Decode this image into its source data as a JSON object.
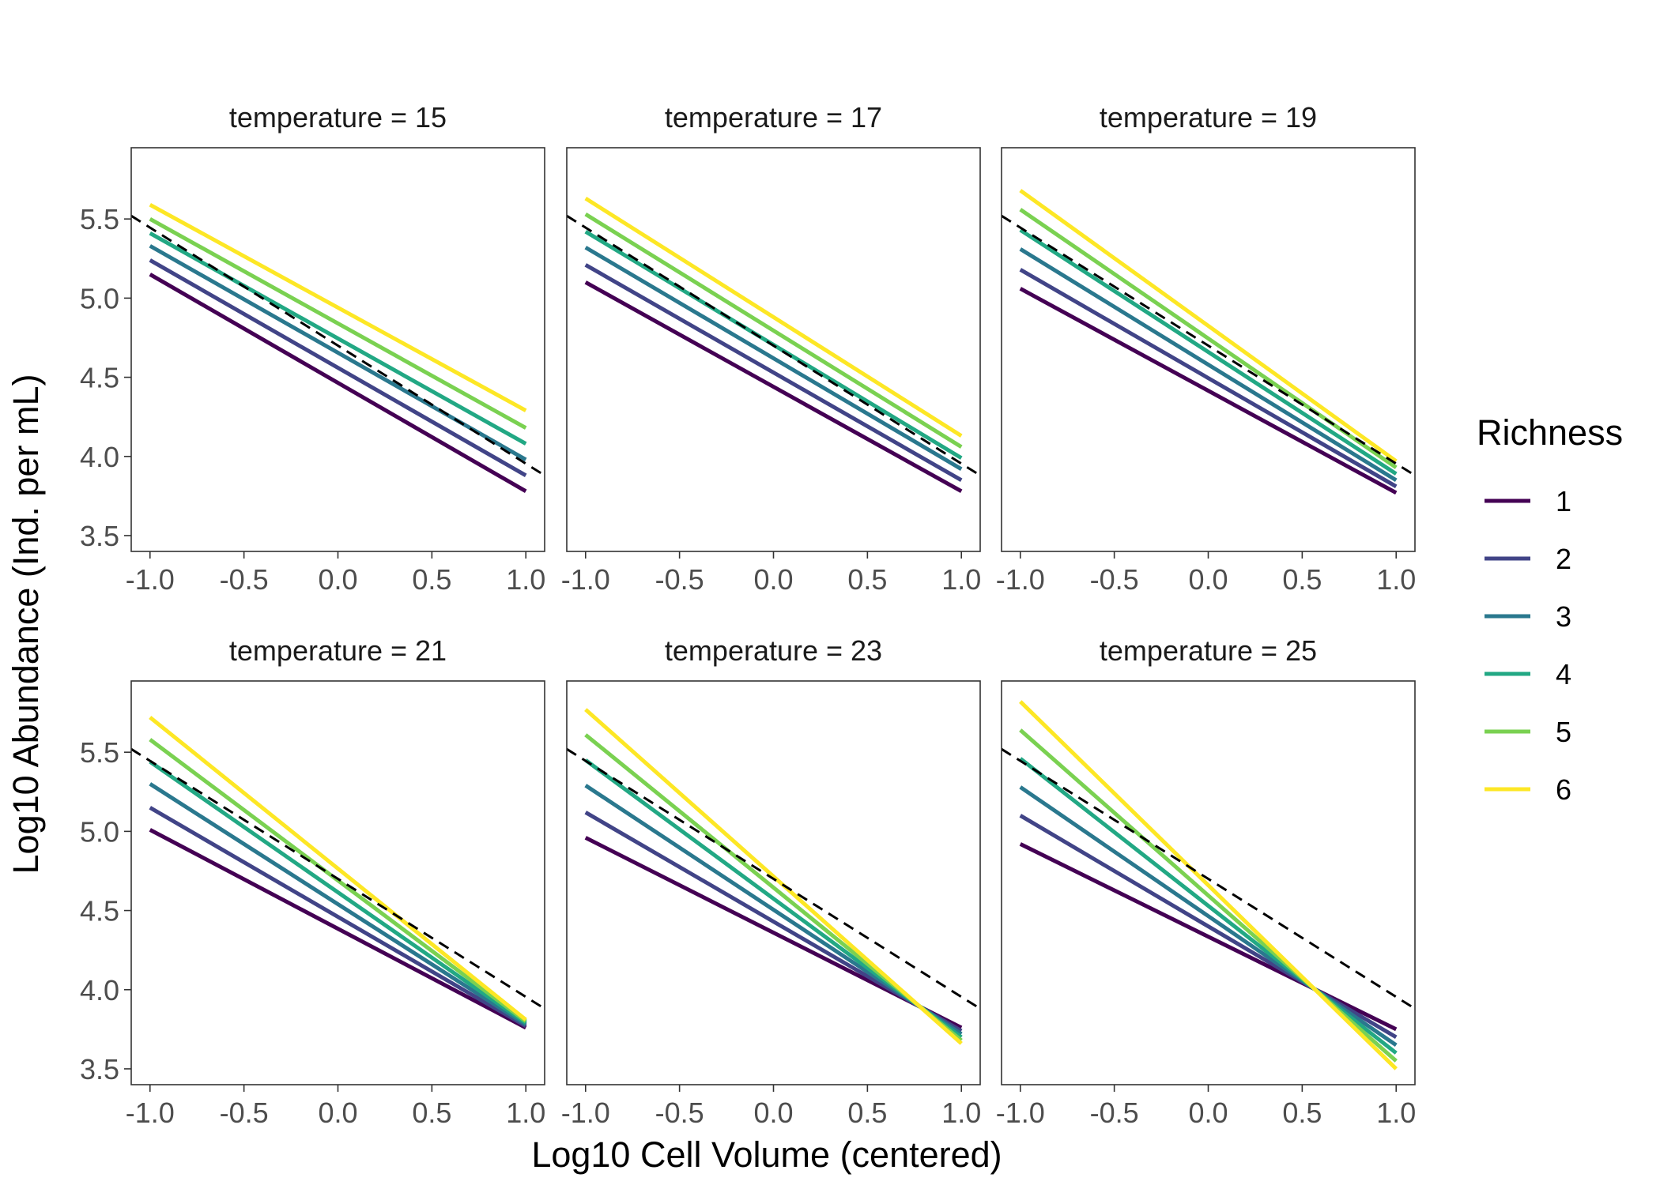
{
  "chart_data": {
    "type": "line",
    "xlabel": "Log10 Cell Volume (centered)",
    "ylabel": "Log10 Abundance (Ind. per mL)",
    "xlim": [
      -1.1,
      1.1
    ],
    "ylim": [
      3.4,
      5.95
    ],
    "x_ticks": [
      -1.0,
      -0.5,
      0.0,
      0.5,
      1.0
    ],
    "x_tick_labels": [
      "-1.0",
      "-0.5",
      "0.0",
      "0.5",
      "1.0"
    ],
    "y_ticks": [
      3.5,
      4.0,
      4.5,
      5.0,
      5.5
    ],
    "y_tick_labels": [
      "3.5",
      "4.0",
      "4.5",
      "5.0",
      "5.5"
    ],
    "grid": false,
    "legend": {
      "title": "Richness",
      "position": "right",
      "entries": [
        {
          "label": "1",
          "color": "#440154"
        },
        {
          "label": "2",
          "color": "#414487"
        },
        {
          "label": "3",
          "color": "#2A788E"
        },
        {
          "label": "4",
          "color": "#22A884"
        },
        {
          "label": "5",
          "color": "#7AD151"
        },
        {
          "label": "6",
          "color": "#FDE725"
        }
      ]
    },
    "reference_line": {
      "style": "dashed",
      "color": "#000000",
      "x": [
        -1.1,
        1.1
      ],
      "y": [
        5.52,
        3.88
      ]
    },
    "panels": [
      {
        "title": "temperature = 15",
        "series": [
          {
            "name": "1",
            "x": [
              -1,
              1
            ],
            "y": [
              5.15,
              3.78
            ]
          },
          {
            "name": "2",
            "x": [
              -1,
              1
            ],
            "y": [
              5.24,
              3.88
            ]
          },
          {
            "name": "3",
            "x": [
              -1,
              1
            ],
            "y": [
              5.33,
              3.98
            ]
          },
          {
            "name": "4",
            "x": [
              -1,
              1
            ],
            "y": [
              5.41,
              4.08
            ]
          },
          {
            "name": "5",
            "x": [
              -1,
              1
            ],
            "y": [
              5.5,
              4.18
            ]
          },
          {
            "name": "6",
            "x": [
              -1,
              1
            ],
            "y": [
              5.59,
              4.29
            ]
          }
        ]
      },
      {
        "title": "temperature = 17",
        "series": [
          {
            "name": "1",
            "x": [
              -1,
              1
            ],
            "y": [
              5.1,
              3.78
            ]
          },
          {
            "name": "2",
            "x": [
              -1,
              1
            ],
            "y": [
              5.21,
              3.85
            ]
          },
          {
            "name": "3",
            "x": [
              -1,
              1
            ],
            "y": [
              5.32,
              3.92
            ]
          },
          {
            "name": "4",
            "x": [
              -1,
              1
            ],
            "y": [
              5.42,
              3.99
            ]
          },
          {
            "name": "5",
            "x": [
              -1,
              1
            ],
            "y": [
              5.53,
              4.06
            ]
          },
          {
            "name": "6",
            "x": [
              -1,
              1
            ],
            "y": [
              5.63,
              4.13
            ]
          }
        ]
      },
      {
        "title": "temperature = 19",
        "series": [
          {
            "name": "1",
            "x": [
              -1,
              1
            ],
            "y": [
              5.06,
              3.77
            ]
          },
          {
            "name": "2",
            "x": [
              -1,
              1
            ],
            "y": [
              5.18,
              3.81
            ]
          },
          {
            "name": "3",
            "x": [
              -1,
              1
            ],
            "y": [
              5.31,
              3.85
            ]
          },
          {
            "name": "4",
            "x": [
              -1,
              1
            ],
            "y": [
              5.43,
              3.89
            ]
          },
          {
            "name": "5",
            "x": [
              -1,
              1
            ],
            "y": [
              5.56,
              3.93
            ]
          },
          {
            "name": "6",
            "x": [
              -1,
              1
            ],
            "y": [
              5.68,
              3.97
            ]
          }
        ]
      },
      {
        "title": "temperature = 21",
        "series": [
          {
            "name": "1",
            "x": [
              -1,
              1
            ],
            "y": [
              5.01,
              3.76
            ]
          },
          {
            "name": "2",
            "x": [
              -1,
              1
            ],
            "y": [
              5.15,
              3.77
            ]
          },
          {
            "name": "3",
            "x": [
              -1,
              1
            ],
            "y": [
              5.3,
              3.78
            ]
          },
          {
            "name": "4",
            "x": [
              -1,
              1
            ],
            "y": [
              5.44,
              3.79
            ]
          },
          {
            "name": "5",
            "x": [
              -1,
              1
            ],
            "y": [
              5.58,
              3.8
            ]
          },
          {
            "name": "6",
            "x": [
              -1,
              1
            ],
            "y": [
              5.72,
              3.81
            ]
          }
        ]
      },
      {
        "title": "temperature = 23",
        "series": [
          {
            "name": "1",
            "x": [
              -1,
              1
            ],
            "y": [
              4.96,
              3.76
            ]
          },
          {
            "name": "2",
            "x": [
              -1,
              1
            ],
            "y": [
              5.12,
              3.74
            ]
          },
          {
            "name": "3",
            "x": [
              -1,
              1
            ],
            "y": [
              5.29,
              3.72
            ]
          },
          {
            "name": "4",
            "x": [
              -1,
              1
            ],
            "y": [
              5.45,
              3.7
            ]
          },
          {
            "name": "5",
            "x": [
              -1,
              1
            ],
            "y": [
              5.61,
              3.68
            ]
          },
          {
            "name": "6",
            "x": [
              -1,
              1
            ],
            "y": [
              5.77,
              3.66
            ]
          }
        ]
      },
      {
        "title": "temperature = 25",
        "series": [
          {
            "name": "1",
            "x": [
              -1,
              1
            ],
            "y": [
              4.92,
              3.75
            ]
          },
          {
            "name": "2",
            "x": [
              -1,
              1
            ],
            "y": [
              5.1,
              3.7
            ]
          },
          {
            "name": "3",
            "x": [
              -1,
              1
            ],
            "y": [
              5.28,
              3.65
            ]
          },
          {
            "name": "4",
            "x": [
              -1,
              1
            ],
            "y": [
              5.46,
              3.6
            ]
          },
          {
            "name": "5",
            "x": [
              -1,
              1
            ],
            "y": [
              5.64,
              3.55
            ]
          },
          {
            "name": "6",
            "x": [
              -1,
              1
            ],
            "y": [
              5.82,
              3.5
            ]
          }
        ]
      }
    ]
  }
}
